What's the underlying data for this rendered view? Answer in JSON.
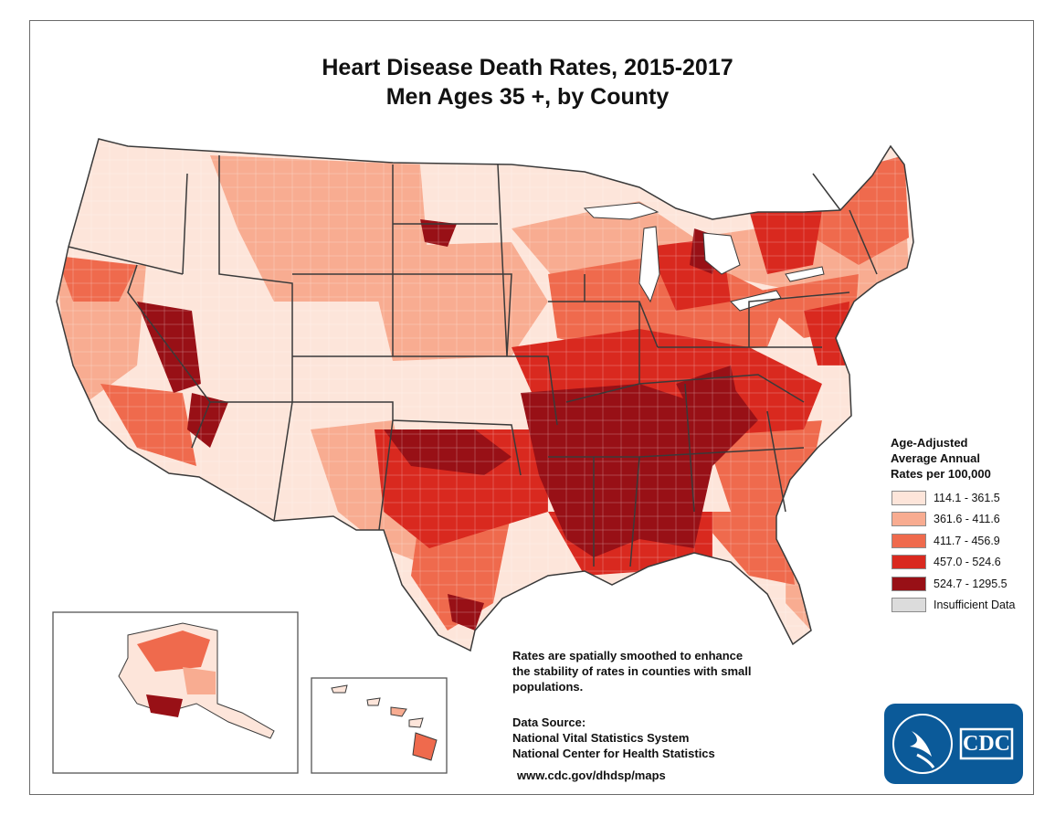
{
  "title": {
    "line1": "Heart Disease Death Rates, 2015-2017",
    "line2": "Men Ages 35 +, by County"
  },
  "legend": {
    "title_lines": [
      "Age-Adjusted",
      "Average Annual",
      "Rates per 100,000"
    ],
    "items": [
      {
        "label": "114.1 - 361.5",
        "color": "#fde5da"
      },
      {
        "label": "361.6 - 411.6",
        "color": "#f8ac91"
      },
      {
        "label": "411.7 - 456.9",
        "color": "#ef6a4d"
      },
      {
        "label": "457.0 - 524.6",
        "color": "#d9291f"
      },
      {
        "label": "524.7 - 1295.5",
        "color": "#981016"
      },
      {
        "label": "Insufficient Data",
        "color": "#dcdcdc"
      }
    ]
  },
  "note": "Rates are spatially smoothed to enhance the stability of rates in counties with small populations.",
  "data_source": {
    "heading": "Data Source:",
    "lines": [
      "National Vital Statistics System",
      "National Center for Health Statistics"
    ]
  },
  "url": "www.cdc.gov/dhdsp/maps",
  "logo": {
    "text": "CDC"
  },
  "colors": {
    "state_border": "#3a3a3a",
    "frame": "#6a6a6a",
    "logo_blue": "#0b5a99"
  }
}
